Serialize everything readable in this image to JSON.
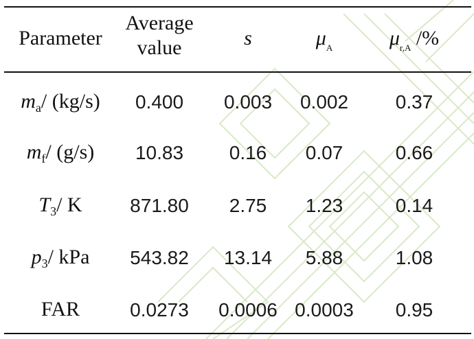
{
  "table": {
    "header": {
      "parameter": "Parameter",
      "average_line1": "Average",
      "average_line2": "value",
      "s": "s",
      "mu_symbol": "μ",
      "mu_sub": "A",
      "mur_symbol": "μ",
      "mur_sub": "r,A",
      "mur_unit": " /%"
    },
    "rows": [
      {
        "param_symbol": "m",
        "param_sub": "a",
        "param_unit": "/ (kg/s)",
        "average": "0.400",
        "s": "0.003",
        "mu": "0.002",
        "mur": "0.37"
      },
      {
        "param_symbol": "m",
        "param_sub": "f",
        "param_unit": "/ (g/s)",
        "average": "10.83",
        "s": "0.16",
        "mu": "0.07",
        "mur": "0.66"
      },
      {
        "param_symbol": "T",
        "param_sub": "3",
        "param_unit": "/ K",
        "average": "871.80",
        "s": "2.75",
        "mu": "1.23",
        "mur": "0.14"
      },
      {
        "param_symbol": "p",
        "param_sub": "3",
        "param_unit": "/ kPa",
        "average": "543.82",
        "s": "13.14",
        "mu": "5.88",
        "mur": "1.08"
      },
      {
        "param_symbol": "",
        "param_sub": "",
        "param_unit": "FAR",
        "average": "0.0273",
        "s": "0.0006",
        "mu": "0.0003",
        "mur": "0.95"
      }
    ]
  }
}
